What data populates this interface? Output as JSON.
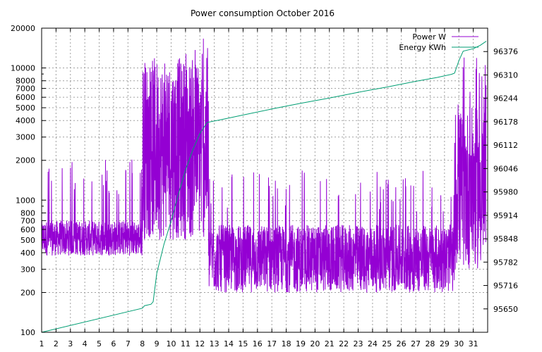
{
  "chart_data": {
    "type": "line",
    "title": "Power consumption October 2016",
    "xlabel": "",
    "ylabel": "",
    "grid": true,
    "legend_placement": "top-right",
    "x_ticks": [
      "1",
      "2",
      "3",
      "4",
      "5",
      "6",
      "7",
      "8",
      "9",
      "10",
      "11",
      "12",
      "13",
      "14",
      "15",
      "16",
      "17",
      "18",
      "19",
      "20",
      "21",
      "22",
      "23",
      "24",
      "25",
      "26",
      "27",
      "28",
      "29",
      "30",
      "31"
    ],
    "xlim": [
      1,
      32
    ],
    "y_left": {
      "scale": "log",
      "ylim": [
        100,
        20000
      ],
      "ticks": [
        100,
        200,
        300,
        400,
        500,
        600,
        700,
        800,
        1000,
        2000,
        3000,
        4000,
        5000,
        6000,
        7000,
        8000,
        10000,
        20000
      ],
      "tick_labels": [
        "100",
        "200",
        "300",
        "400",
        "500",
        "600",
        "700",
        "800",
        "1000",
        "2000",
        "3000",
        "4000",
        "5000",
        "6000",
        "7000",
        "8000",
        "10000",
        "20000"
      ]
    },
    "y_right": {
      "scale": "linear",
      "ylim": [
        95584,
        96442
      ],
      "ticks": [
        95650,
        95716,
        95782,
        95848,
        95914,
        95980,
        96046,
        96112,
        96178,
        96244,
        96310,
        96376
      ],
      "tick_labels": [
        "95650",
        "95716",
        "95782",
        "95848",
        "95914",
        "95980",
        "96046",
        "96112",
        "96178",
        "96244",
        "96310",
        "96376"
      ]
    },
    "legend": [
      {
        "label": "Power W",
        "color": "#9400d3"
      },
      {
        "label": "Energy KWh",
        "color": "#009e73"
      }
    ],
    "series": [
      {
        "name": "Power W",
        "axis": "left",
        "color": "#9400d3",
        "regimes": [
          {
            "x0": 1.0,
            "x1": 8.0,
            "low": 380,
            "high": 700,
            "spike_max": 2100
          },
          {
            "x0": 8.0,
            "x1": 12.6,
            "low": 500,
            "high": 12000,
            "spike_max": 18000
          },
          {
            "x0": 12.6,
            "x1": 29.7,
            "low": 200,
            "high": 650,
            "spike_max": 1750
          },
          {
            "x0": 29.7,
            "x1": 31.9,
            "low": 300,
            "high": 5000,
            "spike_max": 12000
          }
        ]
      },
      {
        "name": "Energy KWh",
        "axis": "right",
        "color": "#009e73",
        "x": [
          1.0,
          8.0,
          8.15,
          8.6,
          8.75,
          9.0,
          9.5,
          10.0,
          10.5,
          11.0,
          11.5,
          12.0,
          12.5,
          13.5,
          15.0,
          17.0,
          19.0,
          21.0,
          23.0,
          25.0,
          27.0,
          28.5,
          29.5,
          29.7,
          30.0,
          30.3,
          31.0,
          31.5,
          31.9
        ],
        "y": [
          95584,
          95652,
          95659,
          95663,
          95670,
          95750,
          95832,
          95898,
          95973,
          96042,
          96098,
          96145,
          96176,
          96184,
          96197,
          96214,
          96230,
          96245,
          96261,
          96276,
          96292,
          96303,
          96312,
          96315,
          96350,
          96377,
          96384,
          96394,
          96405
        ]
      }
    ]
  }
}
